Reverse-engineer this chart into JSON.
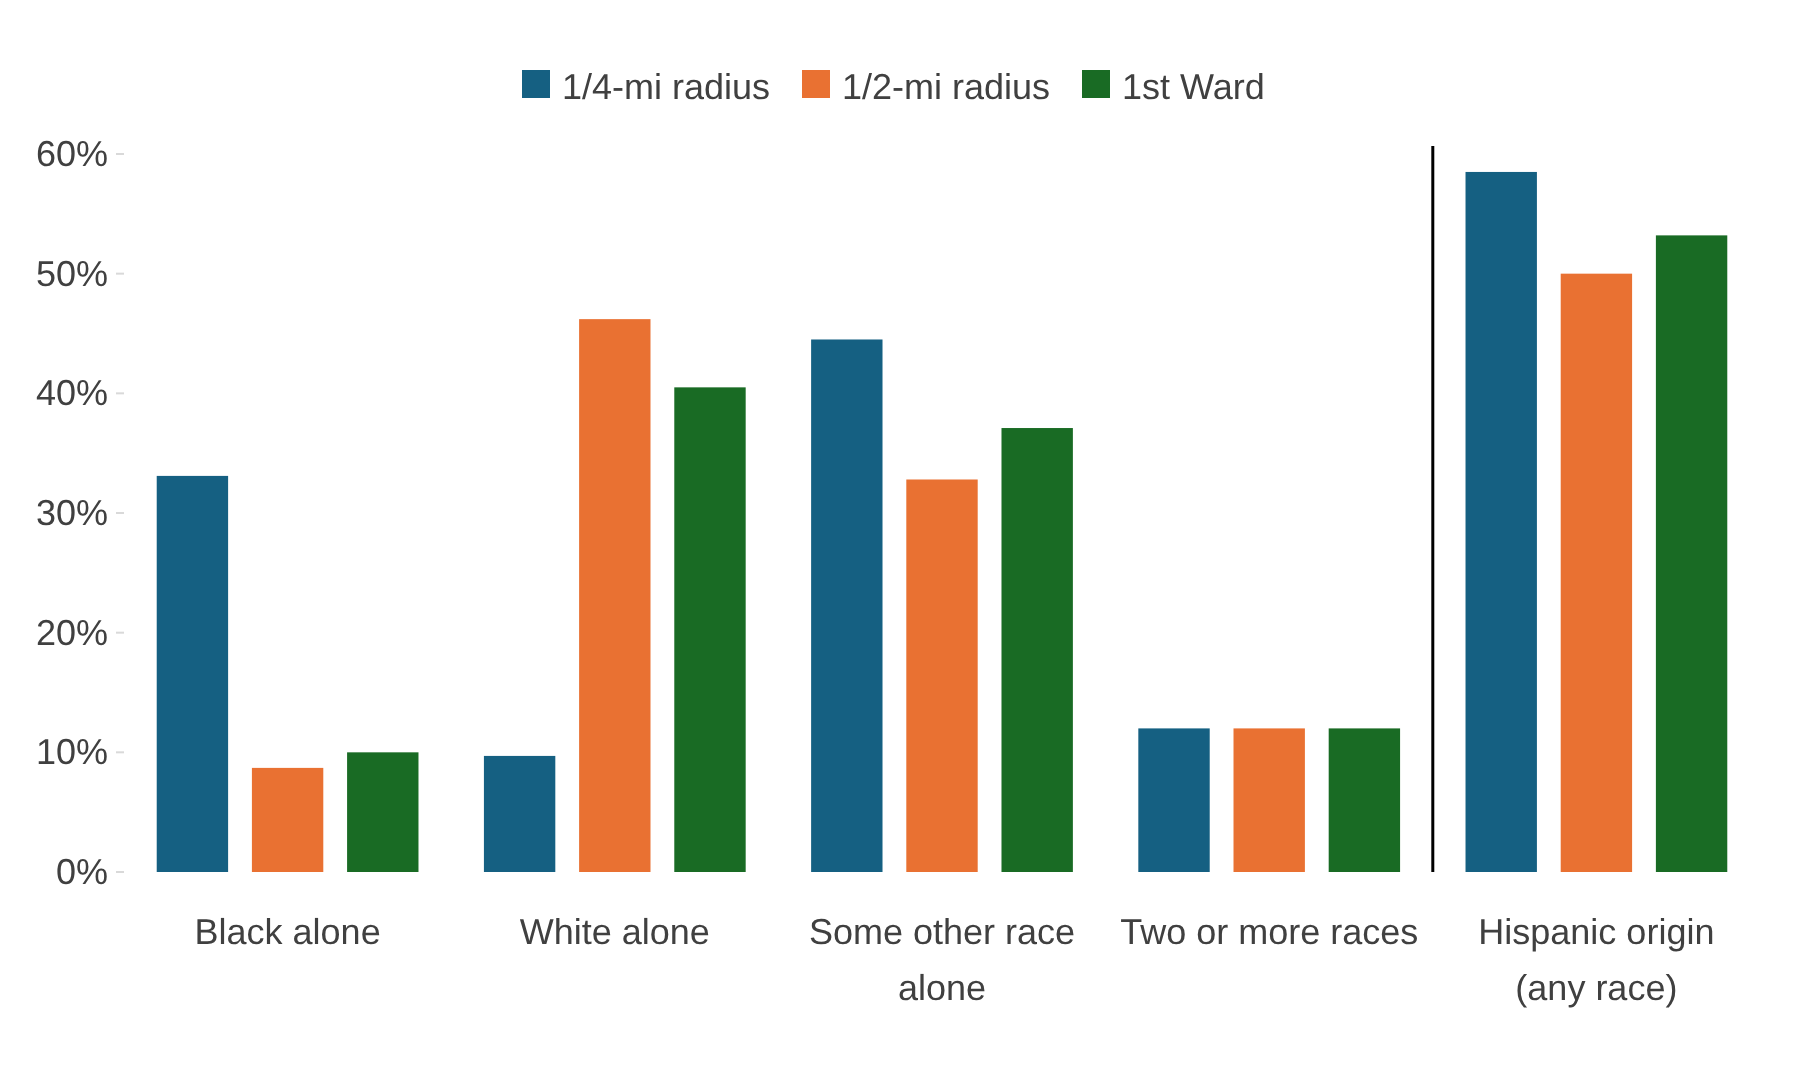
{
  "chart_data": {
    "type": "bar",
    "categories": [
      "Black alone",
      "White alone",
      "Some other race alone",
      "Two or more races",
      "Hispanic origin (any race)"
    ],
    "series": [
      {
        "name": "1/4-mi radius",
        "color": "#156082",
        "values": [
          33.1,
          9.7,
          44.5,
          12.0,
          58.5
        ]
      },
      {
        "name": "1/2-mi radius",
        "color": "#e97132",
        "values": [
          8.7,
          46.2,
          32.8,
          12.0,
          50.0
        ]
      },
      {
        "name": "1st Ward",
        "color": "#196b24",
        "values": [
          10.0,
          40.5,
          37.1,
          12.0,
          53.2
        ]
      }
    ],
    "ylim": [
      0,
      60
    ],
    "yticks": [
      {
        "value": 0,
        "label": "0%"
      },
      {
        "value": 10,
        "label": "10%"
      },
      {
        "value": 20,
        "label": "20%"
      },
      {
        "value": 30,
        "label": "30%"
      },
      {
        "value": 40,
        "label": "40%"
      },
      {
        "value": 50,
        "label": "50%"
      },
      {
        "value": 60,
        "label": "60%"
      }
    ],
    "grid": false,
    "legend": "top"
  }
}
